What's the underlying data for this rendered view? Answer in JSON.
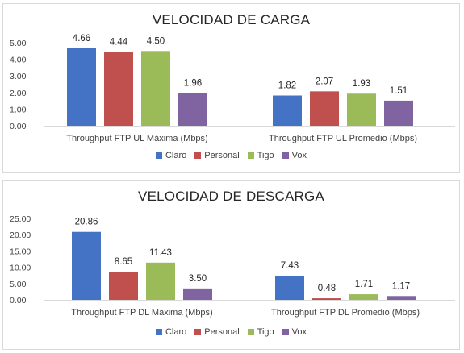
{
  "colors": {
    "Claro": "#4472c4",
    "Personal": "#c0504d",
    "Tigo": "#9bbb59",
    "Vox": "#8064a2"
  },
  "chart_data": [
    {
      "type": "bar",
      "title": "VELOCIDAD DE CARGA",
      "categories": [
        "Throughput FTP UL Máxima (Mbps)",
        "Throughput FTP UL Promedio (Mbps)"
      ],
      "series": [
        {
          "name": "Claro",
          "values": [
            4.66,
            1.82
          ]
        },
        {
          "name": "Personal",
          "values": [
            4.44,
            2.07
          ]
        },
        {
          "name": "Tigo",
          "values": [
            4.5,
            1.93
          ]
        },
        {
          "name": "Vox",
          "values": [
            1.96,
            1.51
          ]
        }
      ],
      "value_labels": [
        [
          "4.66",
          "1.82"
        ],
        [
          "4.44",
          "2.07"
        ],
        [
          "4.50",
          "1.93"
        ],
        [
          "1.96",
          "1.51"
        ]
      ],
      "yticks": [
        "0.00",
        "1.00",
        "2.00",
        "3.00",
        "4.00",
        "5.00"
      ],
      "ylim": [
        0,
        5
      ],
      "xlabel": "",
      "ylabel": "",
      "legend": "bottom",
      "grid": false
    },
    {
      "type": "bar",
      "title": "VELOCIDAD DE DESCARGA",
      "categories": [
        "Throughput FTP DL Máxima (Mbps)",
        "Throughput FTP DL Promedio (Mbps)"
      ],
      "series": [
        {
          "name": "Claro",
          "values": [
            20.86,
            7.43
          ]
        },
        {
          "name": "Personal",
          "values": [
            8.65,
            0.48
          ]
        },
        {
          "name": "Tigo",
          "values": [
            11.43,
            1.71
          ]
        },
        {
          "name": "Vox",
          "values": [
            3.5,
            1.17
          ]
        }
      ],
      "value_labels": [
        [
          "20.86",
          "7.43"
        ],
        [
          "8.65",
          "0.48"
        ],
        [
          "11.43",
          "1.71"
        ],
        [
          "3.50",
          "1.17"
        ]
      ],
      "yticks": [
        "0.00",
        "5.00",
        "10.00",
        "15.00",
        "20.00",
        "25.00"
      ],
      "ylim": [
        0,
        25
      ],
      "xlabel": "",
      "ylabel": "",
      "legend": "bottom",
      "grid": false
    }
  ]
}
